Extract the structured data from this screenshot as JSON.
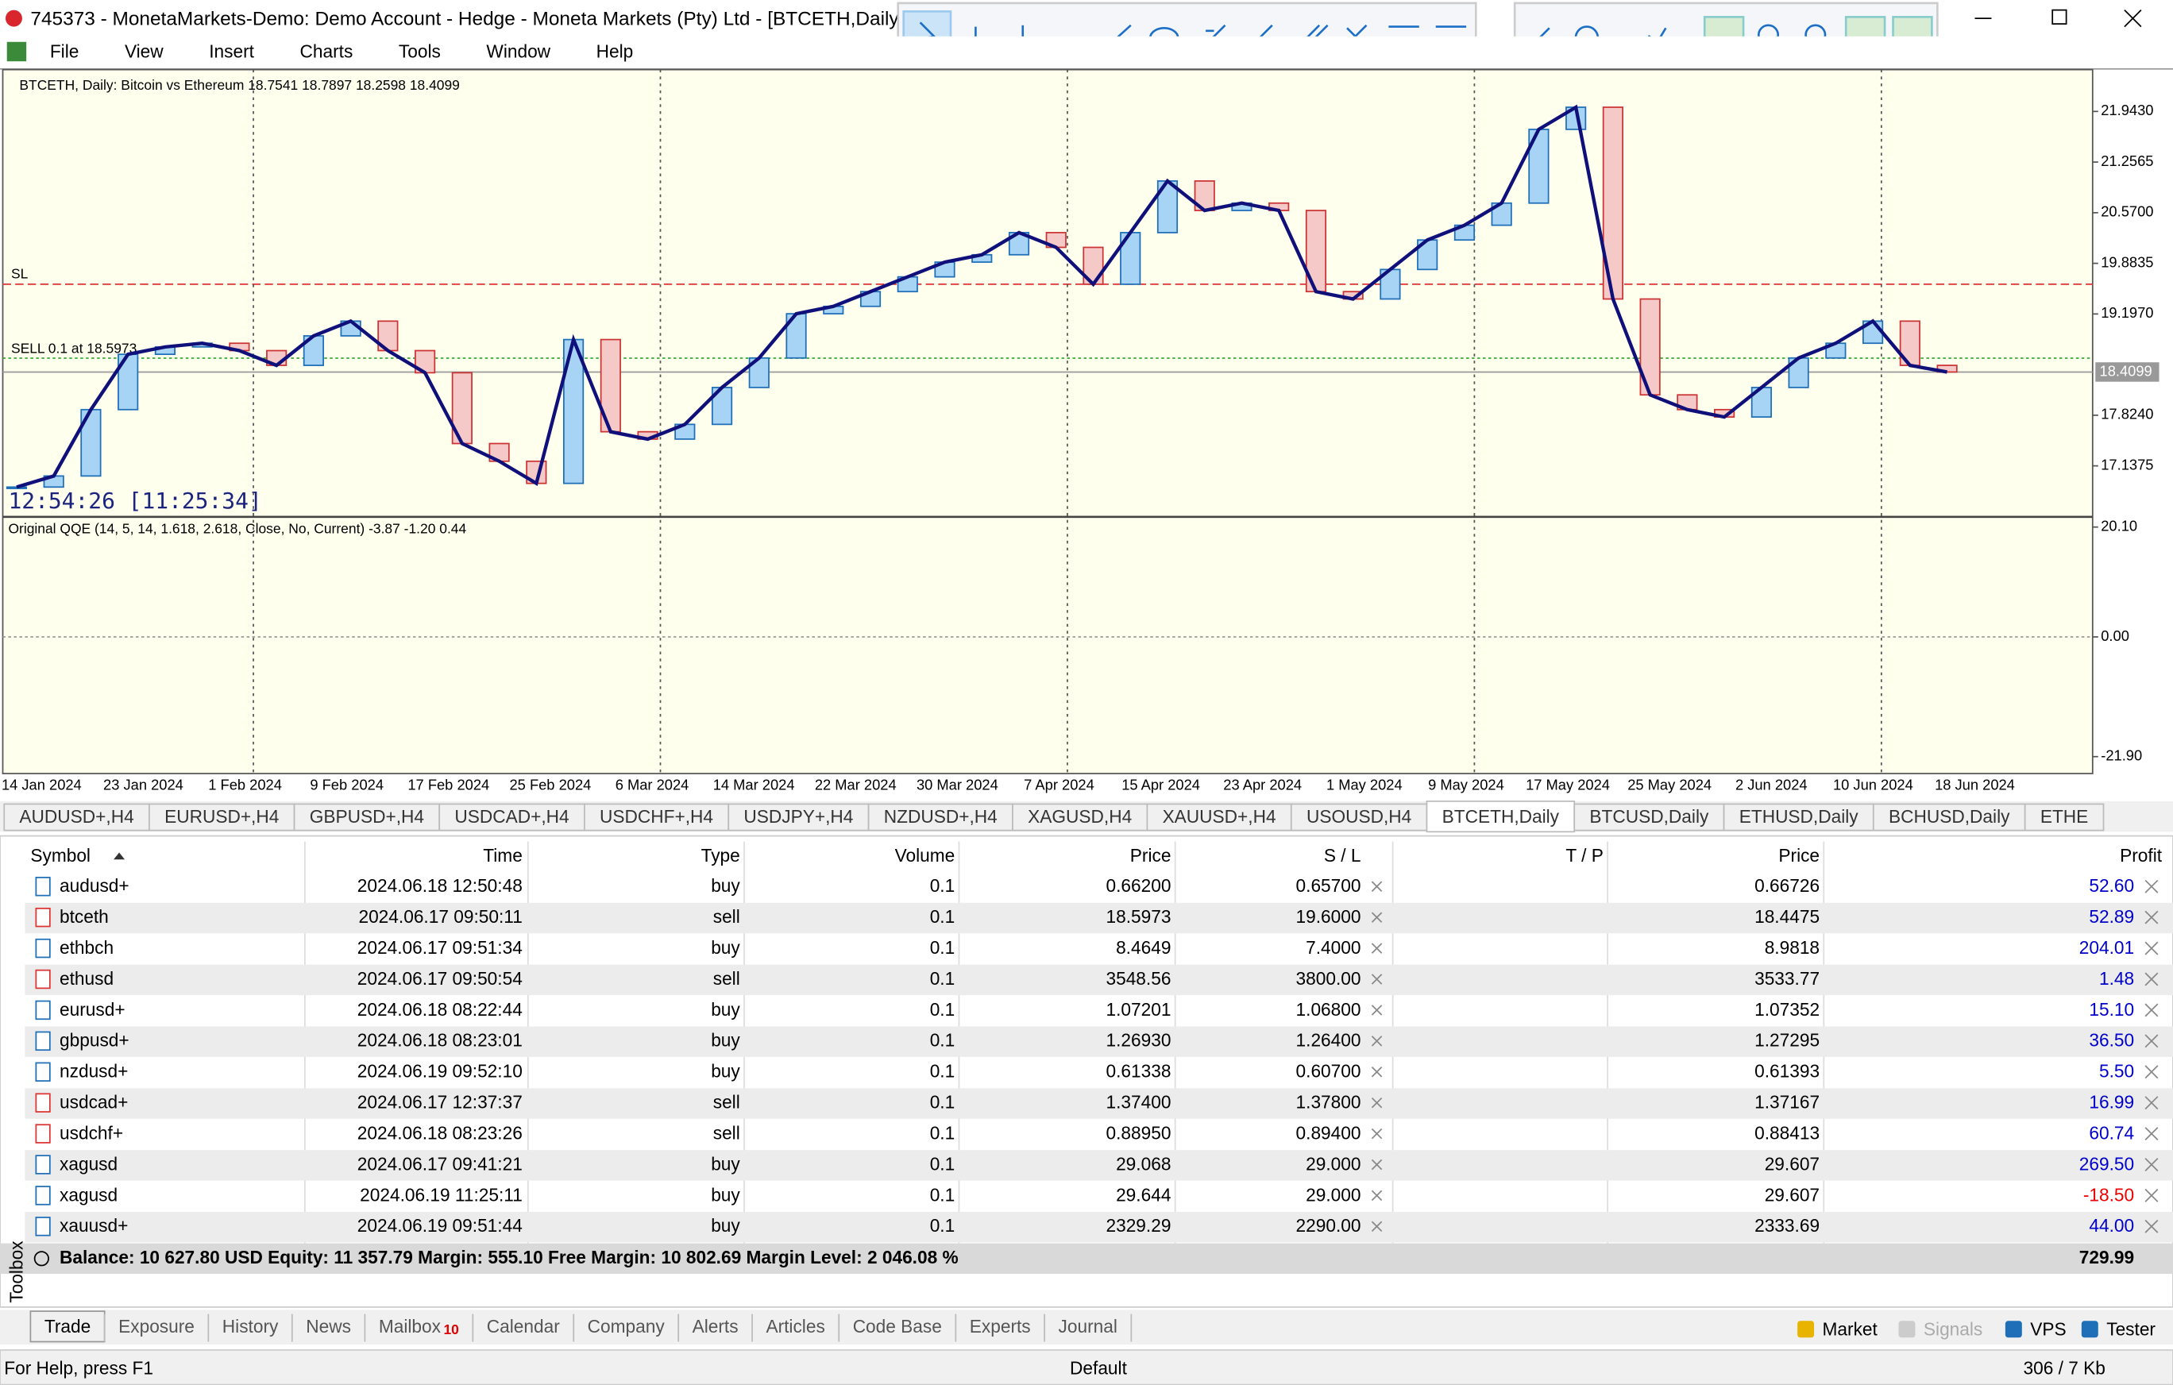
{
  "window": {
    "title": "745373 - MonetaMarkets-Demo: Demo Account - Hedge - Moneta Markets (Pty) Ltd - [BTCETH,Daily]"
  },
  "menu": [
    "File",
    "View",
    "Insert",
    "Charts",
    "Tools",
    "Window",
    "Help"
  ],
  "chart": {
    "header": "BTCETH, Daily:  Bitcoin vs Ethereum  18.7541 18.7897 18.2598 18.4099",
    "sl_label": "SL",
    "sell_label": "SELL 0.1 at 18.5973",
    "timer": "12:54:26 [11:25:34]",
    "ylim": [
      16.46,
      22.51
    ],
    "price_ticks": [
      {
        "value": 21.943,
        "label": "21.9430"
      },
      {
        "value": 21.2565,
        "label": "21.2565"
      },
      {
        "value": 20.57,
        "label": "20.5700"
      },
      {
        "value": 19.8835,
        "label": "19.8835"
      },
      {
        "value": 19.197,
        "label": "19.1970"
      },
      {
        "value": 17.824,
        "label": "17.8240"
      },
      {
        "value": 17.1375,
        "label": "17.1375"
      }
    ],
    "sl_level": 19.6,
    "entry_level": 18.5973,
    "bid": {
      "value": 18.4099,
      "label": "18.4099"
    },
    "closes": [
      16.85,
      17.0,
      17.9,
      18.65,
      18.75,
      18.8,
      18.7,
      18.5,
      18.9,
      19.1,
      18.7,
      18.4,
      17.44,
      17.2,
      16.9,
      18.85,
      17.6,
      17.5,
      17.7,
      18.2,
      18.6,
      19.2,
      19.3,
      19.5,
      19.7,
      19.9,
      20.0,
      20.3,
      20.1,
      19.6,
      20.3,
      21.0,
      20.6,
      20.7,
      20.6,
      19.5,
      19.4,
      19.8,
      20.2,
      20.4,
      20.7,
      21.7,
      22.0,
      19.4,
      18.1,
      17.9,
      17.8,
      18.2,
      18.6,
      18.8,
      19.1,
      18.5,
      18.41
    ],
    "indicator_header": "Original QQE (14, 5, 14, 1.618, 2.618, Close, No, Current) -3.87 -1.20 0.44",
    "indicator_ylim": [
      -25.0,
      21.9
    ],
    "indicator_ticks": [
      {
        "value": 20.1,
        "label": "20.10"
      },
      {
        "value": 0,
        "label": "0.00"
      },
      {
        "value": -21.9,
        "label": "-21.90"
      }
    ],
    "dates": [
      "14 Jan 2024",
      "23 Jan 2024",
      "1 Feb 2024",
      "9 Feb 2024",
      "17 Feb 2024",
      "25 Feb 2024",
      "6 Mar 2024",
      "14 Mar 2024",
      "22 Mar 2024",
      "30 Mar 2024",
      "7 Apr 2024",
      "15 Apr 2024",
      "23 Apr 2024",
      "1 May 2024",
      "9 May 2024",
      "17 May 2024",
      "25 May 2024",
      "2 Jun 2024",
      "10 Jun 2024",
      "18 Jun 2024"
    ]
  },
  "tabs": {
    "items": [
      "AUDUSD+,H4",
      "EURUSD+,H4",
      "GBPUSD+,H4",
      "USDCAD+,H4",
      "USDCHF+,H4",
      "USDJPY+,H4",
      "NZDUSD+,H4",
      "XAGUSD,H4",
      "XAUUSD+,H4",
      "USOUSD,H4",
      "BTCETH,Daily",
      "BTCUSD,Daily",
      "ETHUSD,Daily",
      "BCHUSD,Daily",
      "ETHE"
    ],
    "active": 10
  },
  "table": {
    "columns": [
      "Symbol",
      "Time",
      "Type",
      "Volume",
      "Price",
      "S / L",
      "T / P",
      "Price",
      "Profit"
    ],
    "rows": [
      [
        "audusd+",
        "2024.06.18 12:50:48",
        "buy",
        "0.1",
        "0.66200",
        "0.65700",
        "",
        "0.66726",
        "52.60"
      ],
      [
        "btceth",
        "2024.06.17 09:50:11",
        "sell",
        "0.1",
        "18.5973",
        "19.6000",
        "",
        "18.4475",
        "52.89"
      ],
      [
        "ethbch",
        "2024.06.17 09:51:34",
        "buy",
        "0.1",
        "8.4649",
        "7.4000",
        "",
        "8.9818",
        "204.01"
      ],
      [
        "ethusd",
        "2024.06.17 09:50:54",
        "sell",
        "0.1",
        "3548.56",
        "3800.00",
        "",
        "3533.77",
        "1.48"
      ],
      [
        "eurusd+",
        "2024.06.18 08:22:44",
        "buy",
        "0.1",
        "1.07201",
        "1.06800",
        "",
        "1.07352",
        "15.10"
      ],
      [
        "gbpusd+",
        "2024.06.18 08:23:01",
        "buy",
        "0.1",
        "1.26930",
        "1.26400",
        "",
        "1.27295",
        "36.50"
      ],
      [
        "nzdusd+",
        "2024.06.19 09:52:10",
        "buy",
        "0.1",
        "0.61338",
        "0.60700",
        "",
        "0.61393",
        "5.50"
      ],
      [
        "usdcad+",
        "2024.06.17 12:37:37",
        "sell",
        "0.1",
        "1.37400",
        "1.37800",
        "",
        "1.37167",
        "16.99"
      ],
      [
        "usdchf+",
        "2024.06.18 08:23:26",
        "sell",
        "0.1",
        "0.88950",
        "0.89400",
        "",
        "0.88413",
        "60.74"
      ],
      [
        "xagusd",
        "2024.06.17 09:41:21",
        "buy",
        "0.1",
        "29.068",
        "29.000",
        "",
        "29.607",
        "269.50"
      ],
      [
        "xagusd",
        "2024.06.19 11:25:11",
        "buy",
        "0.1",
        "29.644",
        "29.000",
        "",
        "29.607",
        "-18.50"
      ],
      [
        "xauusd+",
        "2024.06.19 09:51:44",
        "buy",
        "0.1",
        "2329.29",
        "2290.00",
        "",
        "2333.69",
        "44.00"
      ]
    ],
    "summary": "Balance: 10 627.80 USD  Equity: 11 357.79  Margin: 555.10  Free Margin: 10 802.69  Margin Level: 2 046.08 %",
    "total": "729.99"
  },
  "toolbox": {
    "label": "Toolbox",
    "tabs": [
      "Trade",
      "Exposure",
      "History",
      "News",
      "Mailbox",
      "Calendar",
      "Company",
      "Alerts",
      "Articles",
      "Code Base",
      "Experts",
      "Journal"
    ],
    "mailbox_badge": "10",
    "right": [
      "Market",
      "Signals",
      "VPS",
      "Tester"
    ]
  },
  "status": {
    "help": "For Help, press F1",
    "profile": "Default",
    "traffic": "306 / 7 Kb"
  }
}
